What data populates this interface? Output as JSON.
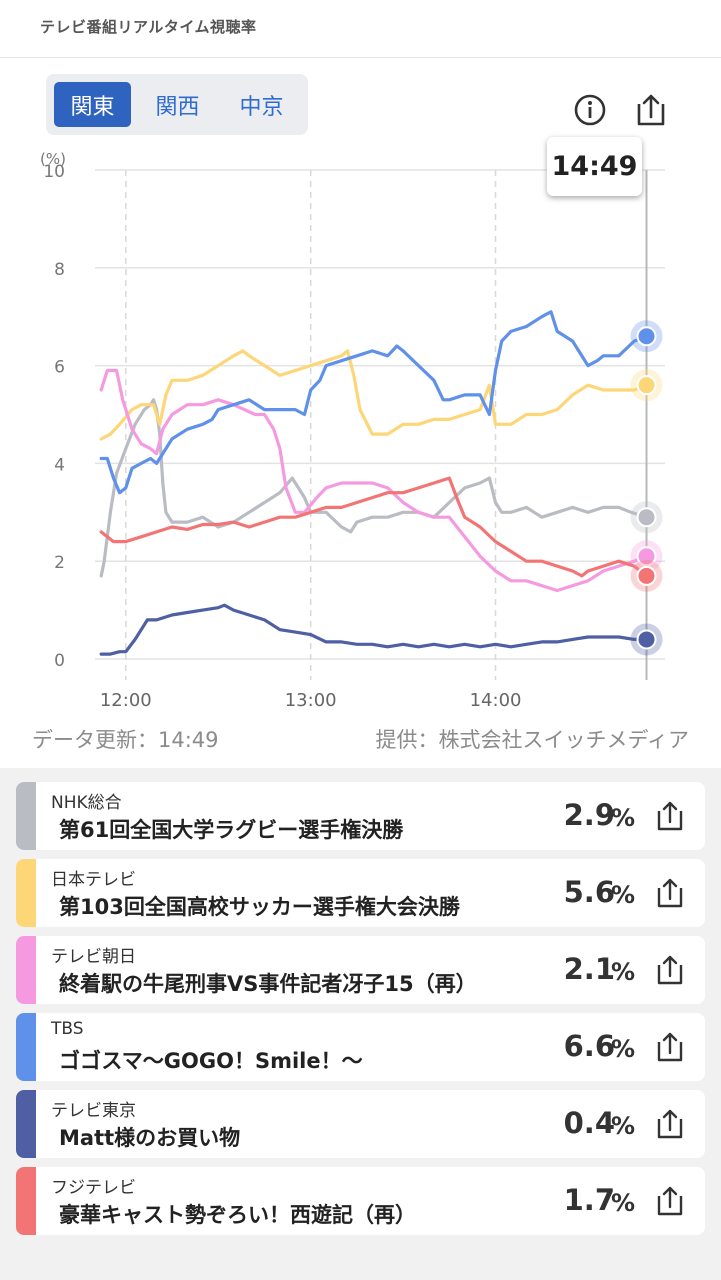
{
  "app": {
    "title": "テレビ番組リアルタイム視聴率"
  },
  "regions": [
    {
      "label": "関東",
      "active": true
    },
    {
      "label": "関西",
      "active": false
    },
    {
      "label": "中京",
      "active": false
    }
  ],
  "icons": {
    "info": "info-icon",
    "share": "share-icon"
  },
  "tooltip": {
    "time": "14:49"
  },
  "footer": {
    "updated": "データ更新：14:49",
    "provider": "提供：株式会社スイッチメディア"
  },
  "programs": [
    {
      "channel": "NHK総合",
      "title": "第61回全国大学ラグビー選手権決勝",
      "rating": "2.9",
      "unit": "%",
      "color": "#b9bcc2"
    },
    {
      "channel": "日本テレビ",
      "title": "第103回全国高校サッカー選手権大会決勝",
      "rating": "5.6",
      "unit": "%",
      "color": "#fcd677"
    },
    {
      "channel": "テレビ朝日",
      "title": "終着駅の牛尾刑事VS事件記者冴子15（再）",
      "rating": "2.1",
      "unit": "%",
      "color": "#f59ae0"
    },
    {
      "channel": "TBS",
      "title": "ゴゴスマ〜GOGO！Smile！〜",
      "rating": "6.6",
      "unit": "%",
      "color": "#5f90ea"
    },
    {
      "channel": "テレビ東京",
      "title": "Matt様のお買い物",
      "rating": "0.4",
      "unit": "%",
      "color": "#4e5fa3"
    },
    {
      "channel": "フジテレビ",
      "title": "豪華キャスト勢ぞろい！西遊記（再）",
      "rating": "1.7",
      "unit": "%",
      "color": "#f27474"
    }
  ],
  "chart_data": {
    "type": "line",
    "title": "",
    "ylabel": "(%)",
    "ylim": [
      0,
      10
    ],
    "yticks": [
      0,
      2,
      4,
      6,
      8,
      10
    ],
    "xlim_minutes": [
      710,
      895
    ],
    "xticks": [
      {
        "label": "12:00",
        "minute": 720
      },
      {
        "label": "13:00",
        "minute": 780
      },
      {
        "label": "14:00",
        "minute": 840
      }
    ],
    "cursor": {
      "label": "14:49",
      "minute": 889
    },
    "series": [
      {
        "name": "NHK総合",
        "color": "#b9bcc2",
        "points": [
          [
            712,
            1.7
          ],
          [
            713,
            2.0
          ],
          [
            715,
            3.0
          ],
          [
            717,
            3.8
          ],
          [
            720,
            4.3
          ],
          [
            723,
            4.8
          ],
          [
            726,
            5.1
          ],
          [
            728,
            5.2
          ],
          [
            729,
            5.3
          ],
          [
            730,
            5.1
          ],
          [
            731,
            4.6
          ],
          [
            732,
            3.6
          ],
          [
            733,
            3.0
          ],
          [
            735,
            2.8
          ],
          [
            740,
            2.8
          ],
          [
            745,
            2.9
          ],
          [
            750,
            2.7
          ],
          [
            755,
            2.8
          ],
          [
            760,
            3.0
          ],
          [
            765,
            3.2
          ],
          [
            770,
            3.4
          ],
          [
            774,
            3.7
          ],
          [
            776,
            3.5
          ],
          [
            778,
            3.3
          ],
          [
            780,
            3.0
          ],
          [
            785,
            3.0
          ],
          [
            790,
            2.7
          ],
          [
            793,
            2.6
          ],
          [
            795,
            2.8
          ],
          [
            800,
            2.9
          ],
          [
            805,
            2.9
          ],
          [
            810,
            3.0
          ],
          [
            815,
            3.0
          ],
          [
            820,
            2.9
          ],
          [
            825,
            3.2
          ],
          [
            830,
            3.5
          ],
          [
            835,
            3.6
          ],
          [
            838,
            3.7
          ],
          [
            840,
            3.2
          ],
          [
            842,
            3.0
          ],
          [
            845,
            3.0
          ],
          [
            850,
            3.1
          ],
          [
            855,
            2.9
          ],
          [
            860,
            3.0
          ],
          [
            865,
            3.1
          ],
          [
            870,
            3.0
          ],
          [
            875,
            3.1
          ],
          [
            880,
            3.1
          ],
          [
            884,
            3.0
          ],
          [
            889,
            2.9
          ]
        ]
      },
      {
        "name": "日本テレビ",
        "color": "#fcd677",
        "points": [
          [
            712,
            4.5
          ],
          [
            715,
            4.6
          ],
          [
            718,
            4.8
          ],
          [
            722,
            5.1
          ],
          [
            725,
            5.2
          ],
          [
            729,
            5.2
          ],
          [
            731,
            4.8
          ],
          [
            733,
            5.4
          ],
          [
            735,
            5.7
          ],
          [
            740,
            5.7
          ],
          [
            745,
            5.8
          ],
          [
            750,
            6.0
          ],
          [
            755,
            6.2
          ],
          [
            758,
            6.3
          ],
          [
            760,
            6.2
          ],
          [
            765,
            6.0
          ],
          [
            770,
            5.8
          ],
          [
            775,
            5.9
          ],
          [
            780,
            6.0
          ],
          [
            785,
            6.1
          ],
          [
            790,
            6.2
          ],
          [
            792,
            6.3
          ],
          [
            794,
            5.8
          ],
          [
            796,
            5.1
          ],
          [
            800,
            4.6
          ],
          [
            805,
            4.6
          ],
          [
            810,
            4.8
          ],
          [
            815,
            4.8
          ],
          [
            820,
            4.9
          ],
          [
            825,
            4.9
          ],
          [
            830,
            5.0
          ],
          [
            835,
            5.1
          ],
          [
            838,
            5.6
          ],
          [
            840,
            4.8
          ],
          [
            845,
            4.8
          ],
          [
            850,
            5.0
          ],
          [
            855,
            5.0
          ],
          [
            860,
            5.1
          ],
          [
            865,
            5.4
          ],
          [
            870,
            5.6
          ],
          [
            875,
            5.5
          ],
          [
            880,
            5.5
          ],
          [
            885,
            5.5
          ],
          [
            889,
            5.6
          ]
        ]
      },
      {
        "name": "テレビ朝日",
        "color": "#f59ae0",
        "points": [
          [
            712,
            5.5
          ],
          [
            714,
            5.9
          ],
          [
            717,
            5.9
          ],
          [
            719,
            5.3
          ],
          [
            722,
            4.7
          ],
          [
            725,
            4.4
          ],
          [
            728,
            4.3
          ],
          [
            730,
            4.2
          ],
          [
            732,
            4.7
          ],
          [
            735,
            5.0
          ],
          [
            740,
            5.2
          ],
          [
            745,
            5.2
          ],
          [
            750,
            5.3
          ],
          [
            755,
            5.2
          ],
          [
            762,
            5.0
          ],
          [
            765,
            5.0
          ],
          [
            768,
            4.7
          ],
          [
            770,
            4.3
          ],
          [
            772,
            3.5
          ],
          [
            775,
            3.0
          ],
          [
            778,
            3.0
          ],
          [
            782,
            3.3
          ],
          [
            785,
            3.5
          ],
          [
            790,
            3.6
          ],
          [
            795,
            3.6
          ],
          [
            800,
            3.6
          ],
          [
            805,
            3.5
          ],
          [
            810,
            3.2
          ],
          [
            815,
            3.0
          ],
          [
            820,
            2.9
          ],
          [
            825,
            2.9
          ],
          [
            830,
            2.5
          ],
          [
            835,
            2.1
          ],
          [
            840,
            1.8
          ],
          [
            845,
            1.6
          ],
          [
            850,
            1.6
          ],
          [
            855,
            1.5
          ],
          [
            860,
            1.4
          ],
          [
            865,
            1.5
          ],
          [
            870,
            1.6
          ],
          [
            875,
            1.8
          ],
          [
            880,
            1.9
          ],
          [
            885,
            2.0
          ],
          [
            889,
            2.1
          ]
        ]
      },
      {
        "name": "TBS",
        "color": "#5f90ea",
        "points": [
          [
            712,
            4.1
          ],
          [
            714,
            4.1
          ],
          [
            716,
            3.7
          ],
          [
            718,
            3.4
          ],
          [
            720,
            3.5
          ],
          [
            722,
            3.9
          ],
          [
            725,
            4.0
          ],
          [
            728,
            4.1
          ],
          [
            730,
            4.0
          ],
          [
            732,
            4.2
          ],
          [
            735,
            4.5
          ],
          [
            740,
            4.7
          ],
          [
            745,
            4.8
          ],
          [
            748,
            4.9
          ],
          [
            750,
            5.1
          ],
          [
            755,
            5.2
          ],
          [
            760,
            5.3
          ],
          [
            765,
            5.1
          ],
          [
            770,
            5.1
          ],
          [
            775,
            5.1
          ],
          [
            778,
            5.0
          ],
          [
            780,
            5.5
          ],
          [
            783,
            5.7
          ],
          [
            785,
            6.0
          ],
          [
            790,
            6.1
          ],
          [
            795,
            6.2
          ],
          [
            800,
            6.3
          ],
          [
            805,
            6.2
          ],
          [
            808,
            6.4
          ],
          [
            810,
            6.3
          ],
          [
            815,
            6.0
          ],
          [
            820,
            5.7
          ],
          [
            823,
            5.3
          ],
          [
            825,
            5.3
          ],
          [
            830,
            5.4
          ],
          [
            835,
            5.4
          ],
          [
            838,
            5.0
          ],
          [
            840,
            5.9
          ],
          [
            842,
            6.5
          ],
          [
            845,
            6.7
          ],
          [
            850,
            6.8
          ],
          [
            855,
            7.0
          ],
          [
            858,
            7.1
          ],
          [
            860,
            6.7
          ],
          [
            865,
            6.5
          ],
          [
            870,
            6.0
          ],
          [
            873,
            6.1
          ],
          [
            875,
            6.2
          ],
          [
            880,
            6.2
          ],
          [
            885,
            6.5
          ],
          [
            889,
            6.6
          ]
        ]
      },
      {
        "name": "テレビ東京",
        "color": "#4e5fa3",
        "points": [
          [
            712,
            0.1
          ],
          [
            715,
            0.1
          ],
          [
            718,
            0.15
          ],
          [
            720,
            0.15
          ],
          [
            723,
            0.4
          ],
          [
            725,
            0.6
          ],
          [
            727,
            0.8
          ],
          [
            730,
            0.8
          ],
          [
            735,
            0.9
          ],
          [
            740,
            0.95
          ],
          [
            745,
            1.0
          ],
          [
            750,
            1.05
          ],
          [
            752,
            1.1
          ],
          [
            755,
            1.0
          ],
          [
            760,
            0.9
          ],
          [
            765,
            0.8
          ],
          [
            770,
            0.6
          ],
          [
            775,
            0.55
          ],
          [
            780,
            0.5
          ],
          [
            785,
            0.35
          ],
          [
            790,
            0.35
          ],
          [
            795,
            0.3
          ],
          [
            800,
            0.3
          ],
          [
            805,
            0.25
          ],
          [
            810,
            0.3
          ],
          [
            815,
            0.25
          ],
          [
            820,
            0.3
          ],
          [
            825,
            0.25
          ],
          [
            830,
            0.3
          ],
          [
            835,
            0.25
          ],
          [
            840,
            0.3
          ],
          [
            845,
            0.25
          ],
          [
            850,
            0.3
          ],
          [
            855,
            0.35
          ],
          [
            860,
            0.35
          ],
          [
            865,
            0.4
          ],
          [
            870,
            0.45
          ],
          [
            875,
            0.45
          ],
          [
            880,
            0.45
          ],
          [
            885,
            0.4
          ],
          [
            889,
            0.4
          ]
        ]
      },
      {
        "name": "フジテレビ",
        "color": "#f27474",
        "points": [
          [
            712,
            2.6
          ],
          [
            714,
            2.5
          ],
          [
            716,
            2.4
          ],
          [
            720,
            2.4
          ],
          [
            725,
            2.5
          ],
          [
            730,
            2.6
          ],
          [
            735,
            2.7
          ],
          [
            740,
            2.65
          ],
          [
            745,
            2.75
          ],
          [
            750,
            2.75
          ],
          [
            755,
            2.8
          ],
          [
            760,
            2.7
          ],
          [
            765,
            2.8
          ],
          [
            770,
            2.9
          ],
          [
            775,
            2.9
          ],
          [
            780,
            3.0
          ],
          [
            785,
            3.1
          ],
          [
            790,
            3.1
          ],
          [
            795,
            3.2
          ],
          [
            800,
            3.3
          ],
          [
            805,
            3.4
          ],
          [
            810,
            3.4
          ],
          [
            815,
            3.5
          ],
          [
            820,
            3.6
          ],
          [
            825,
            3.7
          ],
          [
            828,
            3.2
          ],
          [
            830,
            2.9
          ],
          [
            835,
            2.7
          ],
          [
            840,
            2.4
          ],
          [
            845,
            2.2
          ],
          [
            850,
            2.0
          ],
          [
            855,
            2.0
          ],
          [
            860,
            1.9
          ],
          [
            865,
            1.8
          ],
          [
            868,
            1.7
          ],
          [
            870,
            1.8
          ],
          [
            875,
            1.9
          ],
          [
            880,
            2.0
          ],
          [
            885,
            1.9
          ],
          [
            889,
            1.7
          ]
        ]
      }
    ]
  }
}
